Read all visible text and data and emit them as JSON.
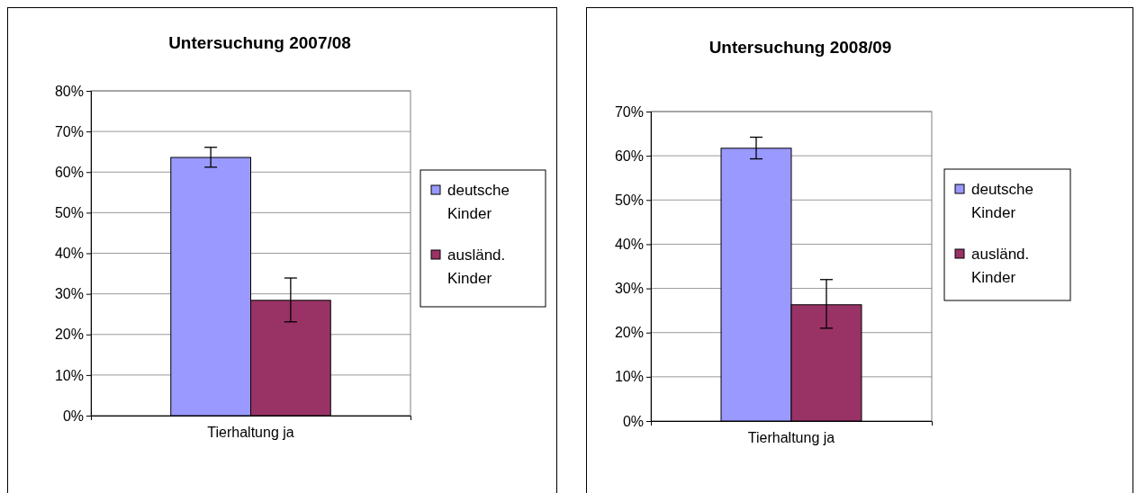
{
  "chart_data": [
    {
      "type": "bar",
      "title": "Untersuchung 2007/08",
      "categories": [
        "Tierhaltung ja"
      ],
      "series": [
        {
          "name": "deutsche Kinder",
          "color": "#9999ff",
          "values": [
            63.6
          ],
          "errors": [
            [
              61.2,
              66.1
            ]
          ]
        },
        {
          "name": "ausländ. Kinder",
          "color": "#993366",
          "values": [
            28.4
          ],
          "errors": [
            [
              23.1,
              33.9
            ]
          ]
        }
      ],
      "ylim": [
        0,
        80
      ],
      "yticks": [
        {
          "value": 0,
          "label": "0%"
        },
        {
          "value": 10,
          "label": "10%"
        },
        {
          "value": 20,
          "label": "20%"
        },
        {
          "value": 30,
          "label": "30%"
        },
        {
          "value": 40,
          "label": "40%"
        },
        {
          "value": 50,
          "label": "50%"
        },
        {
          "value": 60,
          "label": "60%"
        },
        {
          "value": 70,
          "label": "70%"
        },
        {
          "value": 80,
          "label": "80%"
        }
      ],
      "grid": "y",
      "legend": "right"
    },
    {
      "type": "bar",
      "title": "Untersuchung 2008/09",
      "categories": [
        "Tierhaltung ja"
      ],
      "series": [
        {
          "name": "deutsche Kinder",
          "color": "#9999ff",
          "values": [
            61.7
          ],
          "errors": [
            [
              59.3,
              64.2
            ]
          ]
        },
        {
          "name": "ausländ. Kinder",
          "color": "#993366",
          "values": [
            26.3
          ],
          "errors": [
            [
              21.0,
              32.0
            ]
          ]
        }
      ],
      "ylim": [
        0,
        70
      ],
      "yticks": [
        {
          "value": 0,
          "label": "0%"
        },
        {
          "value": 10,
          "label": "10%"
        },
        {
          "value": 20,
          "label": "20%"
        },
        {
          "value": 30,
          "label": "30%"
        },
        {
          "value": 40,
          "label": "40%"
        },
        {
          "value": 50,
          "label": "50%"
        },
        {
          "value": 60,
          "label": "60%"
        },
        {
          "value": 70,
          "label": "70%"
        }
      ],
      "grid": "y",
      "legend": "right"
    }
  ]
}
